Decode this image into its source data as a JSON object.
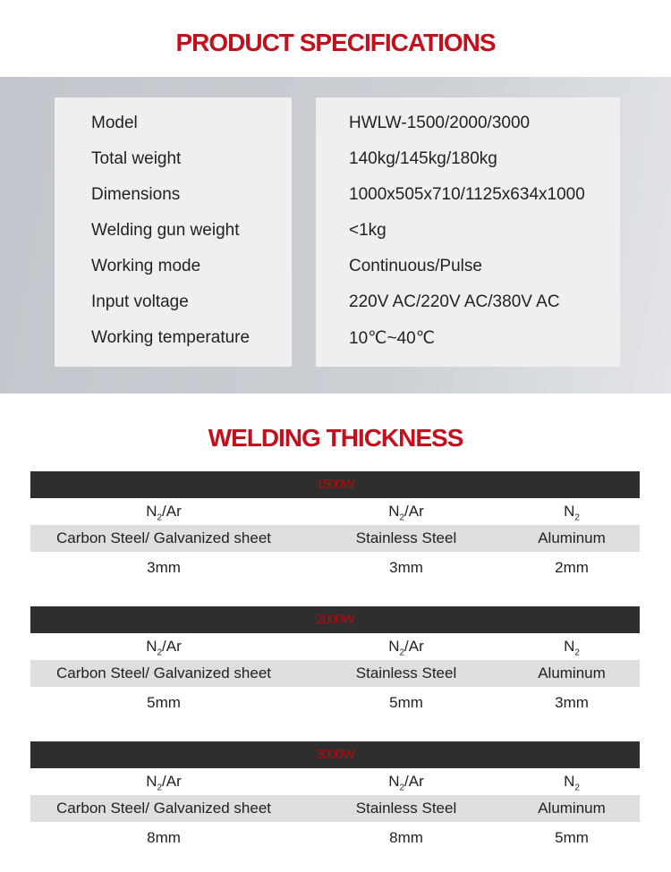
{
  "spec_title": "PRODUCT SPECIFICATIONS",
  "specs": [
    {
      "label": "Model",
      "value": "HWLW-1500/2000/3000"
    },
    {
      "label": "Total weight",
      "value": "140kg/145kg/180kg"
    },
    {
      "label": "Dimensions",
      "value": "1000x505x710/1125x634x1000"
    },
    {
      "label": "Welding gun weight",
      "value": "<1kg"
    },
    {
      "label": "Working mode",
      "value": "Continuous/Pulse"
    },
    {
      "label": "Input voltage",
      "value": "220V AC/220V AC/380V AC"
    },
    {
      "label": "Working temperature",
      "value": "10℃~40℃"
    }
  ],
  "thickness_title": "WELDING THICKNESS",
  "gas": [
    {
      "base": "N",
      "sub": "2",
      "rest": "/Ar"
    },
    {
      "base": "N",
      "sub": "2",
      "rest": "/Ar"
    },
    {
      "base": "N",
      "sub": "2",
      "rest": ""
    }
  ],
  "materials": [
    "Carbon Steel/ Galvanized sheet",
    "Stainless Steel",
    "Aluminum"
  ],
  "blocks": [
    {
      "power": "1500W",
      "values": [
        "3mm",
        "3mm",
        "2mm"
      ]
    },
    {
      "power": "2000W",
      "values": [
        "5mm",
        "5mm",
        "3mm"
      ]
    },
    {
      "power": "3000W",
      "values": [
        "8mm",
        "8mm",
        "5mm"
      ]
    }
  ],
  "colors": {
    "accent": "#c4101d",
    "header_bg": "#2e2e2e"
  }
}
